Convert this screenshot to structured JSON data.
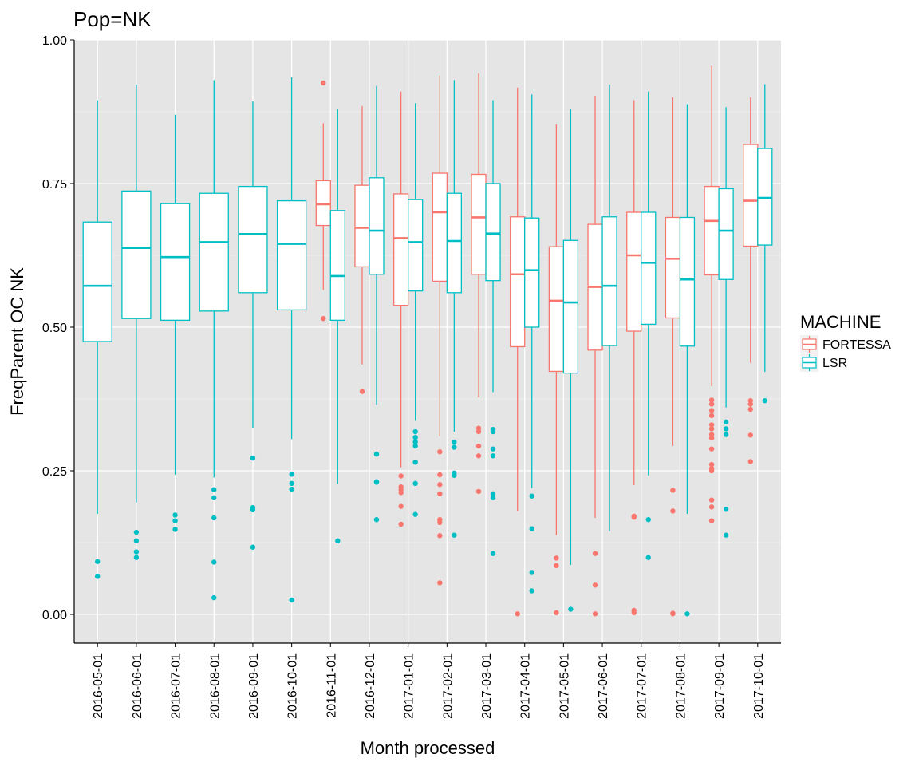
{
  "chart_data": {
    "type": "box",
    "title": "Pop=NK",
    "xlabel": "Month processed",
    "ylabel": "FreqParent OC  NK",
    "ylim": [
      -0.05,
      1.0
    ],
    "yticks": [
      "0.00",
      "0.25",
      "0.50",
      "0.75",
      "1.00"
    ],
    "ytick_values": [
      0.0,
      0.25,
      0.5,
      0.75,
      1.0
    ],
    "grid": true,
    "legend": {
      "title": "MACHINE",
      "position": "right",
      "items": [
        {
          "name": "FORTESSA",
          "color": "#F8766D"
        },
        {
          "name": "LSR",
          "color": "#00BFC4"
        }
      ]
    },
    "categories": [
      "2016-05-01",
      "2016-06-01",
      "2016-07-01",
      "2016-08-01",
      "2016-09-01",
      "2016-10-01",
      "2016-11-01",
      "2016-12-01",
      "2017-01-01",
      "2017-02-01",
      "2017-03-01",
      "2017-04-01",
      "2017-05-01",
      "2017-06-01",
      "2017-07-01",
      "2017-08-01",
      "2017-09-01",
      "2017-10-01"
    ],
    "boxes": [
      {
        "category": "2016-05-01",
        "series": "LSR",
        "q1": 0.475,
        "median": 0.572,
        "q3": 0.683,
        "lo": 0.175,
        "hi": 0.895,
        "outliers": [
          0.092,
          0.066
        ]
      },
      {
        "category": "2016-06-01",
        "series": "LSR",
        "q1": 0.515,
        "median": 0.638,
        "q3": 0.737,
        "lo": 0.195,
        "hi": 0.922,
        "outliers": [
          0.143,
          0.128,
          0.109,
          0.099
        ]
      },
      {
        "category": "2016-07-01",
        "series": "LSR",
        "q1": 0.512,
        "median": 0.622,
        "q3": 0.715,
        "lo": 0.243,
        "hi": 0.87,
        "outliers": [
          0.173,
          0.163,
          0.148
        ]
      },
      {
        "category": "2016-08-01",
        "series": "LSR",
        "q1": 0.528,
        "median": 0.648,
        "q3": 0.733,
        "lo": 0.238,
        "hi": 0.93,
        "outliers": [
          0.217,
          0.203,
          0.168,
          0.091,
          0.029
        ]
      },
      {
        "category": "2016-09-01",
        "series": "LSR",
        "q1": 0.56,
        "median": 0.662,
        "q3": 0.745,
        "lo": 0.325,
        "hi": 0.893,
        "outliers": [
          0.272,
          0.186,
          0.182,
          0.117
        ]
      },
      {
        "category": "2016-10-01",
        "series": "LSR",
        "q1": 0.53,
        "median": 0.645,
        "q3": 0.72,
        "lo": 0.305,
        "hi": 0.935,
        "outliers": [
          0.244,
          0.228,
          0.218,
          0.025
        ]
      },
      {
        "category": "2016-11-01",
        "series": "FORTESSA",
        "q1": 0.677,
        "median": 0.714,
        "q3": 0.755,
        "lo": 0.565,
        "hi": 0.855,
        "outliers": [
          0.925,
          0.515
        ]
      },
      {
        "category": "2016-11-01",
        "series": "LSR",
        "q1": 0.512,
        "median": 0.589,
        "q3": 0.703,
        "lo": 0.227,
        "hi": 0.88,
        "outliers": [
          0.128
        ]
      },
      {
        "category": "2016-12-01",
        "series": "FORTESSA",
        "q1": 0.605,
        "median": 0.673,
        "q3": 0.747,
        "lo": 0.435,
        "hi": 0.885,
        "outliers": [
          0.388
        ]
      },
      {
        "category": "2016-12-01",
        "series": "LSR",
        "q1": 0.592,
        "median": 0.668,
        "q3": 0.76,
        "lo": 0.365,
        "hi": 0.92,
        "outliers": [
          0.279,
          0.231,
          0.23,
          0.165
        ]
      },
      {
        "category": "2017-01-01",
        "series": "FORTESSA",
        "q1": 0.538,
        "median": 0.655,
        "q3": 0.732,
        "lo": 0.256,
        "hi": 0.91,
        "outliers": [
          0.241,
          0.222,
          0.217,
          0.212,
          0.188,
          0.157
        ]
      },
      {
        "category": "2017-01-01",
        "series": "LSR",
        "q1": 0.563,
        "median": 0.648,
        "q3": 0.722,
        "lo": 0.338,
        "hi": 0.89,
        "outliers": [
          0.318,
          0.308,
          0.3,
          0.293,
          0.265,
          0.228,
          0.174
        ]
      },
      {
        "category": "2017-02-01",
        "series": "FORTESSA",
        "q1": 0.58,
        "median": 0.7,
        "q3": 0.768,
        "lo": 0.31,
        "hi": 0.938,
        "outliers": [
          0.283,
          0.243,
          0.226,
          0.21,
          0.165,
          0.16,
          0.137,
          0.055
        ]
      },
      {
        "category": "2017-02-01",
        "series": "LSR",
        "q1": 0.56,
        "median": 0.65,
        "q3": 0.733,
        "lo": 0.318,
        "hi": 0.93,
        "outliers": [
          0.3,
          0.291,
          0.246,
          0.242,
          0.138
        ]
      },
      {
        "category": "2017-03-01",
        "series": "FORTESSA",
        "q1": 0.592,
        "median": 0.691,
        "q3": 0.766,
        "lo": 0.378,
        "hi": 0.942,
        "outliers": [
          0.324,
          0.318,
          0.293,
          0.276,
          0.214
        ]
      },
      {
        "category": "2017-03-01",
        "series": "LSR",
        "q1": 0.581,
        "median": 0.663,
        "q3": 0.75,
        "lo": 0.387,
        "hi": 0.895,
        "outliers": [
          0.322,
          0.318,
          0.288,
          0.276,
          0.21,
          0.203,
          0.106
        ]
      },
      {
        "category": "2017-04-01",
        "series": "FORTESSA",
        "q1": 0.466,
        "median": 0.592,
        "q3": 0.692,
        "lo": 0.18,
        "hi": 0.917,
        "outliers": [
          0.001
        ]
      },
      {
        "category": "2017-04-01",
        "series": "LSR",
        "q1": 0.5,
        "median": 0.599,
        "q3": 0.69,
        "lo": 0.22,
        "hi": 0.905,
        "outliers": [
          0.206,
          0.149,
          0.073,
          0.041
        ]
      },
      {
        "category": "2017-05-01",
        "series": "FORTESSA",
        "q1": 0.423,
        "median": 0.546,
        "q3": 0.64,
        "lo": 0.138,
        "hi": 0.853,
        "outliers": [
          0.098,
          0.085,
          0.003
        ]
      },
      {
        "category": "2017-05-01",
        "series": "LSR",
        "q1": 0.42,
        "median": 0.543,
        "q3": 0.651,
        "lo": 0.086,
        "hi": 0.88,
        "outliers": [
          0.009
        ]
      },
      {
        "category": "2017-06-01",
        "series": "FORTESSA",
        "q1": 0.46,
        "median": 0.57,
        "q3": 0.679,
        "lo": 0.168,
        "hi": 0.903,
        "outliers": [
          0.106,
          0.051,
          0.001
        ]
      },
      {
        "category": "2017-06-01",
        "series": "LSR",
        "q1": 0.468,
        "median": 0.572,
        "q3": 0.692,
        "lo": 0.145,
        "hi": 0.922,
        "outliers": []
      },
      {
        "category": "2017-07-01",
        "series": "FORTESSA",
        "q1": 0.493,
        "median": 0.625,
        "q3": 0.7,
        "lo": 0.225,
        "hi": 0.895,
        "outliers": [
          0.171,
          0.169,
          0.007,
          0.003
        ]
      },
      {
        "category": "2017-07-01",
        "series": "LSR",
        "q1": 0.505,
        "median": 0.612,
        "q3": 0.7,
        "lo": 0.242,
        "hi": 0.91,
        "outliers": [
          0.165,
          0.099
        ]
      },
      {
        "category": "2017-08-01",
        "series": "FORTESSA",
        "q1": 0.516,
        "median": 0.619,
        "q3": 0.691,
        "lo": 0.293,
        "hi": 0.9,
        "outliers": [
          0.216,
          0.18,
          0.002,
          0.001
        ]
      },
      {
        "category": "2017-08-01",
        "series": "LSR",
        "q1": 0.467,
        "median": 0.583,
        "q3": 0.691,
        "lo": 0.175,
        "hi": 0.888,
        "outliers": [
          0.001
        ]
      },
      {
        "category": "2017-09-01",
        "series": "FORTESSA",
        "q1": 0.591,
        "median": 0.685,
        "q3": 0.745,
        "lo": 0.397,
        "hi": 0.955,
        "outliers": [
          0.373,
          0.366,
          0.355,
          0.346,
          0.33,
          0.323,
          0.313,
          0.307,
          0.288,
          0.261,
          0.254,
          0.25,
          0.199,
          0.187,
          0.163
        ]
      },
      {
        "category": "2017-09-01",
        "series": "LSR",
        "q1": 0.583,
        "median": 0.668,
        "q3": 0.741,
        "lo": 0.36,
        "hi": 0.883,
        "outliers": [
          0.335,
          0.323,
          0.313,
          0.183,
          0.138
        ]
      },
      {
        "category": "2017-10-01",
        "series": "FORTESSA",
        "q1": 0.641,
        "median": 0.72,
        "q3": 0.818,
        "lo": 0.438,
        "hi": 0.9,
        "outliers": [
          0.372,
          0.366,
          0.357,
          0.312,
          0.266
        ]
      },
      {
        "category": "2017-10-01",
        "series": "LSR",
        "q1": 0.643,
        "median": 0.725,
        "q3": 0.811,
        "lo": 0.422,
        "hi": 0.923,
        "outliers": [
          0.372
        ]
      }
    ]
  }
}
